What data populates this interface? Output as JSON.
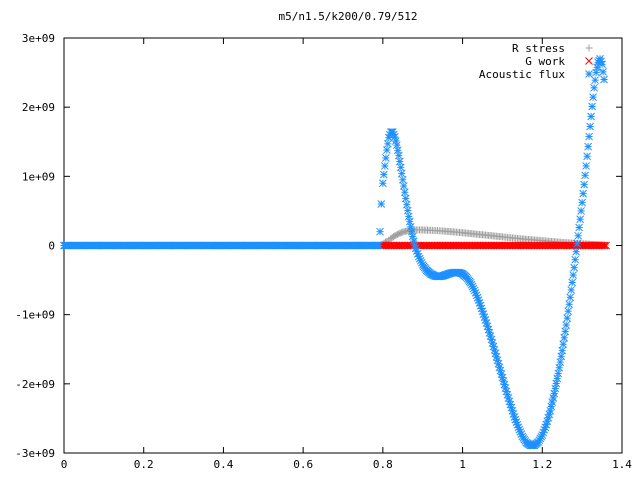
{
  "chart_data": {
    "type": "scatter",
    "title": "m5/n1.5/k200/0.79/512",
    "xlabel": "",
    "ylabel": "",
    "xlim": [
      0,
      1.4
    ],
    "ylim": [
      -3000000000,
      3000000000
    ],
    "x_ticks": [
      0,
      0.2,
      0.4,
      0.6,
      0.8,
      1,
      1.2,
      1.4
    ],
    "y_ticks": [
      -3000000000,
      -2000000000,
      -1000000000,
      0,
      1000000000,
      2000000000,
      3000000000
    ],
    "x_tick_labels": [
      "0",
      "0.2",
      "0.4",
      "0.6",
      "0.8",
      "1",
      "1.2",
      "1.4"
    ],
    "y_tick_labels": [
      "-3e+09",
      "-2e+09",
      "-1e+09",
      "0",
      "1e+09",
      "2e+09",
      "3e+09"
    ],
    "grid": false,
    "legend_position": "top-right",
    "series": [
      {
        "name": "R stress",
        "marker": "plus",
        "color": "#a0a0a0",
        "x": [
          0,
          0.79,
          0.8,
          0.81,
          0.82,
          0.83,
          0.84,
          0.85,
          0.86,
          0.87,
          0.88,
          0.9,
          0.92,
          0.95,
          1.0,
          1.05,
          1.1,
          1.15,
          1.2,
          1.25,
          1.3,
          1.33,
          1.36
        ],
        "y": [
          0,
          0,
          20000000,
          60000000,
          100000000,
          140000000,
          170000000,
          195000000,
          210000000,
          220000000,
          225000000,
          225000000,
          220000000,
          210000000,
          185000000,
          155000000,
          125000000,
          95000000,
          70000000,
          45000000,
          25000000,
          15000000,
          5000000
        ]
      },
      {
        "name": "G work",
        "marker": "cross",
        "color": "#ff0000",
        "x": [
          0.79,
          1.36
        ],
        "y": [
          0,
          0
        ]
      },
      {
        "name": "Acoustic flux",
        "marker": "star",
        "color": "#1e90ff",
        "x": [
          0,
          0.79,
          0.793,
          0.796,
          0.8,
          0.805,
          0.81,
          0.815,
          0.82,
          0.825,
          0.83,
          0.835,
          0.84,
          0.845,
          0.85,
          0.855,
          0.86,
          0.865,
          0.87,
          0.875,
          0.88,
          0.89,
          0.9,
          0.91,
          0.92,
          0.93,
          0.94,
          0.95,
          0.96,
          0.97,
          0.98,
          0.99,
          1.0,
          1.01,
          1.02,
          1.03,
          1.04,
          1.05,
          1.06,
          1.07,
          1.08,
          1.09,
          1.1,
          1.11,
          1.12,
          1.13,
          1.14,
          1.15,
          1.16,
          1.17,
          1.18,
          1.19,
          1.2,
          1.21,
          1.22,
          1.23,
          1.24,
          1.25,
          1.26,
          1.27,
          1.28,
          1.29,
          1.3,
          1.305,
          1.31,
          1.315,
          1.32,
          1.325,
          1.33,
          1.335,
          1.34,
          1.345,
          1.35,
          1.355
        ],
        "y": [
          0,
          0,
          200000000,
          600000000,
          900000000,
          1150000000,
          1380000000,
          1560000000,
          1640000000,
          1640000000,
          1570000000,
          1450000000,
          1300000000,
          1130000000,
          950000000,
          770000000,
          590000000,
          420000000,
          270000000,
          130000000,
          0,
          -160000000,
          -280000000,
          -360000000,
          -410000000,
          -440000000,
          -450000000,
          -440000000,
          -420000000,
          -400000000,
          -390000000,
          -390000000,
          -410000000,
          -460000000,
          -540000000,
          -650000000,
          -790000000,
          -950000000,
          -1120000000,
          -1310000000,
          -1510000000,
          -1710000000,
          -1910000000,
          -2110000000,
          -2300000000,
          -2480000000,
          -2630000000,
          -2760000000,
          -2850000000,
          -2890000000,
          -2890000000,
          -2840000000,
          -2740000000,
          -2590000000,
          -2390000000,
          -2140000000,
          -1850000000,
          -1520000000,
          -1150000000,
          -750000000,
          -320000000,
          140000000,
          620000000,
          880000000,
          1150000000,
          1430000000,
          1720000000,
          2010000000,
          2280000000,
          2500000000,
          2650000000,
          2700000000,
          2620000000,
          2400000000
        ]
      }
    ]
  }
}
